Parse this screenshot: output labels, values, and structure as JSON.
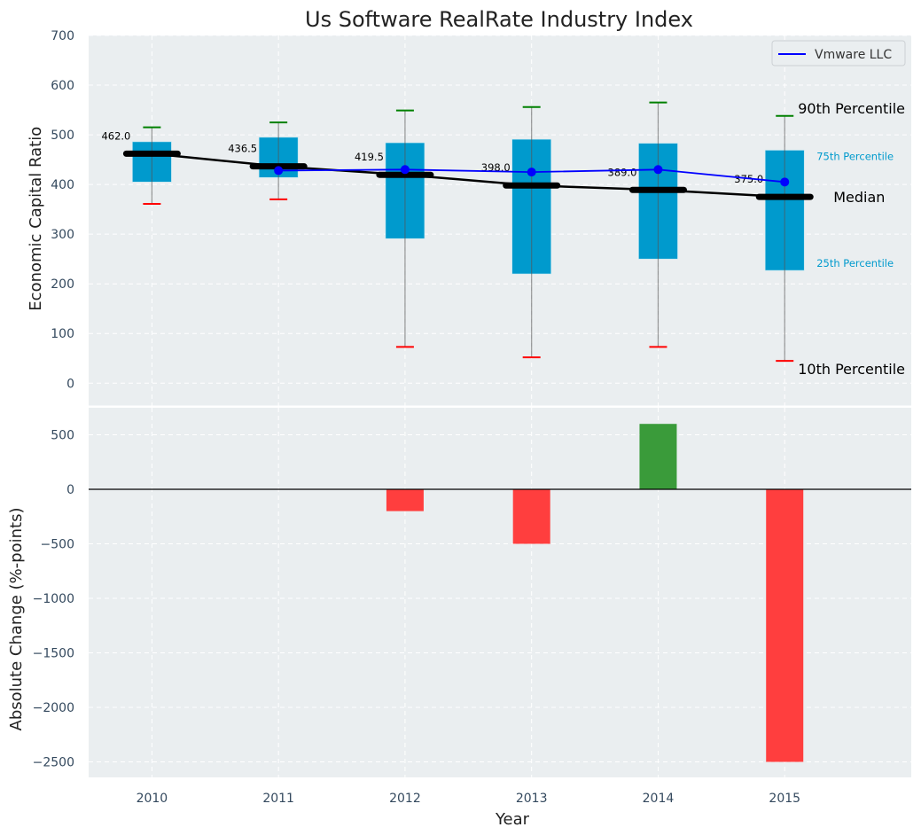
{
  "chart_data": [
    {
      "type": "box",
      "title": "Us Software RealRate Industry Index",
      "xlabel": "",
      "ylabel": "Economic Capital Ratio",
      "ylim": [
        -45,
        700
      ],
      "yticks": [
        0,
        100,
        200,
        300,
        400,
        500,
        600,
        700
      ],
      "grid": true,
      "legend": {
        "position": "top-right",
        "entries": [
          "Vmware LLC"
        ]
      },
      "categories": [
        2010,
        2011,
        2012,
        2013,
        2014,
        2015
      ],
      "percentiles": {
        "p10": [
          361,
          370,
          73,
          52,
          73,
          45
        ],
        "p25": [
          405,
          414,
          291,
          220,
          250,
          227
        ],
        "median": [
          462.0,
          436.5,
          419.5,
          398.0,
          389.0,
          375.0
        ],
        "p75": [
          486,
          495,
          484,
          491,
          483,
          469
        ],
        "p90": [
          515,
          525,
          549,
          556,
          565,
          538
        ]
      },
      "median_labels": [
        "462.0",
        "436.5",
        "419.5",
        "398.0",
        "389.0",
        "375.0"
      ],
      "series": [
        {
          "name": "Vmware LLC",
          "x": [
            2011,
            2012,
            2013,
            2014,
            2015
          ],
          "values": [
            428,
            430,
            425,
            430,
            405
          ],
          "color": "#0000ff"
        }
      ],
      "annotations": {
        "p90": "90th Percentile",
        "p75": "75th Percentile",
        "median": "Median",
        "p25": "25th Percentile",
        "p10": "10th Percentile"
      },
      "colors": {
        "box": "#009acd",
        "p90_cap": "#008000",
        "p10_cap": "#ff0000",
        "median": "#000000",
        "percentile_label": "#009acd",
        "background": "#eaeef0"
      }
    },
    {
      "type": "bar",
      "title": "",
      "xlabel": "Year",
      "ylabel": "Absolute Change (%-points)",
      "ylim": [
        -2642,
        748
      ],
      "yticks": [
        500,
        0,
        -500,
        -1000,
        -1500,
        -2000,
        -2500
      ],
      "ytick_labels": [
        "500",
        "0",
        "−5 00",
        "−1000",
        "−1500",
        "−2000",
        "−2500"
      ],
      "grid": true,
      "categories": [
        2010,
        2011,
        2012,
        2013,
        2014,
        2015
      ],
      "xtick_labels": [
        "2010",
        "2011",
        "2012",
        "2013",
        "2014",
        "2015"
      ],
      "values": [
        0,
        0,
        -200,
        -500,
        600,
        -2500
      ],
      "colors": {
        "positive": "#3a9b3a",
        "negative": "#ff3e3e",
        "zero_line": "#000000"
      }
    }
  ]
}
